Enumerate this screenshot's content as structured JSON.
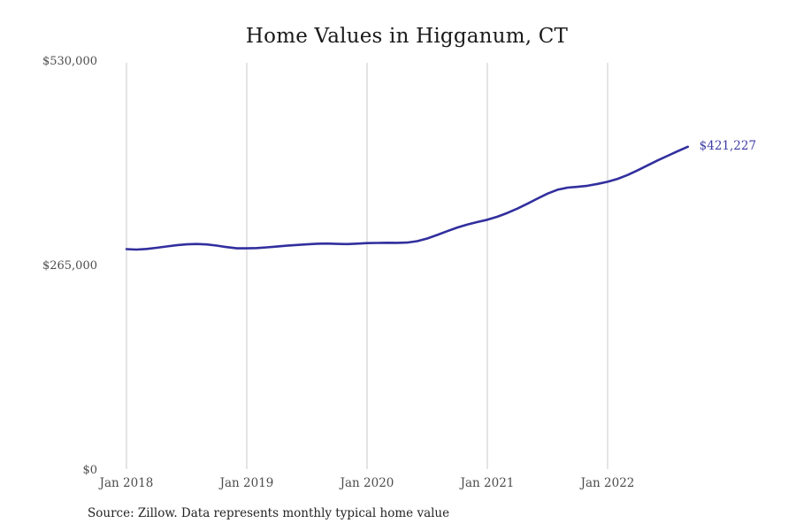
{
  "page": {
    "source_note": "Source: Zillow. Data represents monthly typical home value"
  },
  "chart_data": {
    "type": "line",
    "title": "Home Values in Higganum, CT",
    "xlabel": "",
    "ylabel": "",
    "x_start": "Jan 2018",
    "x_end": "Sep 2022",
    "x_interval": "monthly",
    "ylim": [
      0,
      530000
    ],
    "grid": "vertical-only",
    "legend": "none",
    "line_color": "#312f9e",
    "grid_color": "#c9c9c9",
    "end_label": "$421,227",
    "end_value": 421227,
    "y_ticks": [
      {
        "label": "$0",
        "value": 0
      },
      {
        "label": "$265,000",
        "value": 265000
      },
      {
        "label": "$530,000",
        "value": 530000
      }
    ],
    "x_ticks": [
      {
        "label": "Jan 2018",
        "month_index": 0
      },
      {
        "label": "Jan 2019",
        "month_index": 12
      },
      {
        "label": "Jan 2020",
        "month_index": 24
      },
      {
        "label": "Jan 2021",
        "month_index": 36
      },
      {
        "label": "Jan 2022",
        "month_index": 48
      }
    ],
    "series": [
      {
        "name": "Typical home value",
        "values": [
          288500,
          288000,
          288700,
          290200,
          292000,
          293600,
          294700,
          295200,
          294600,
          293100,
          291100,
          289600,
          289500,
          289900,
          290800,
          291900,
          293000,
          293900,
          294700,
          295500,
          295700,
          295300,
          295100,
          295600,
          296300,
          296600,
          296800,
          296700,
          297000,
          298800,
          302300,
          306900,
          311800,
          316500,
          320400,
          323600,
          326600,
          330500,
          335400,
          341100,
          347400,
          354000,
          360500,
          365500,
          368200,
          369300,
          370700,
          373100,
          375800,
          379600,
          384600,
          390700,
          397200,
          403600,
          409500,
          415500,
          421227
        ]
      }
    ]
  }
}
